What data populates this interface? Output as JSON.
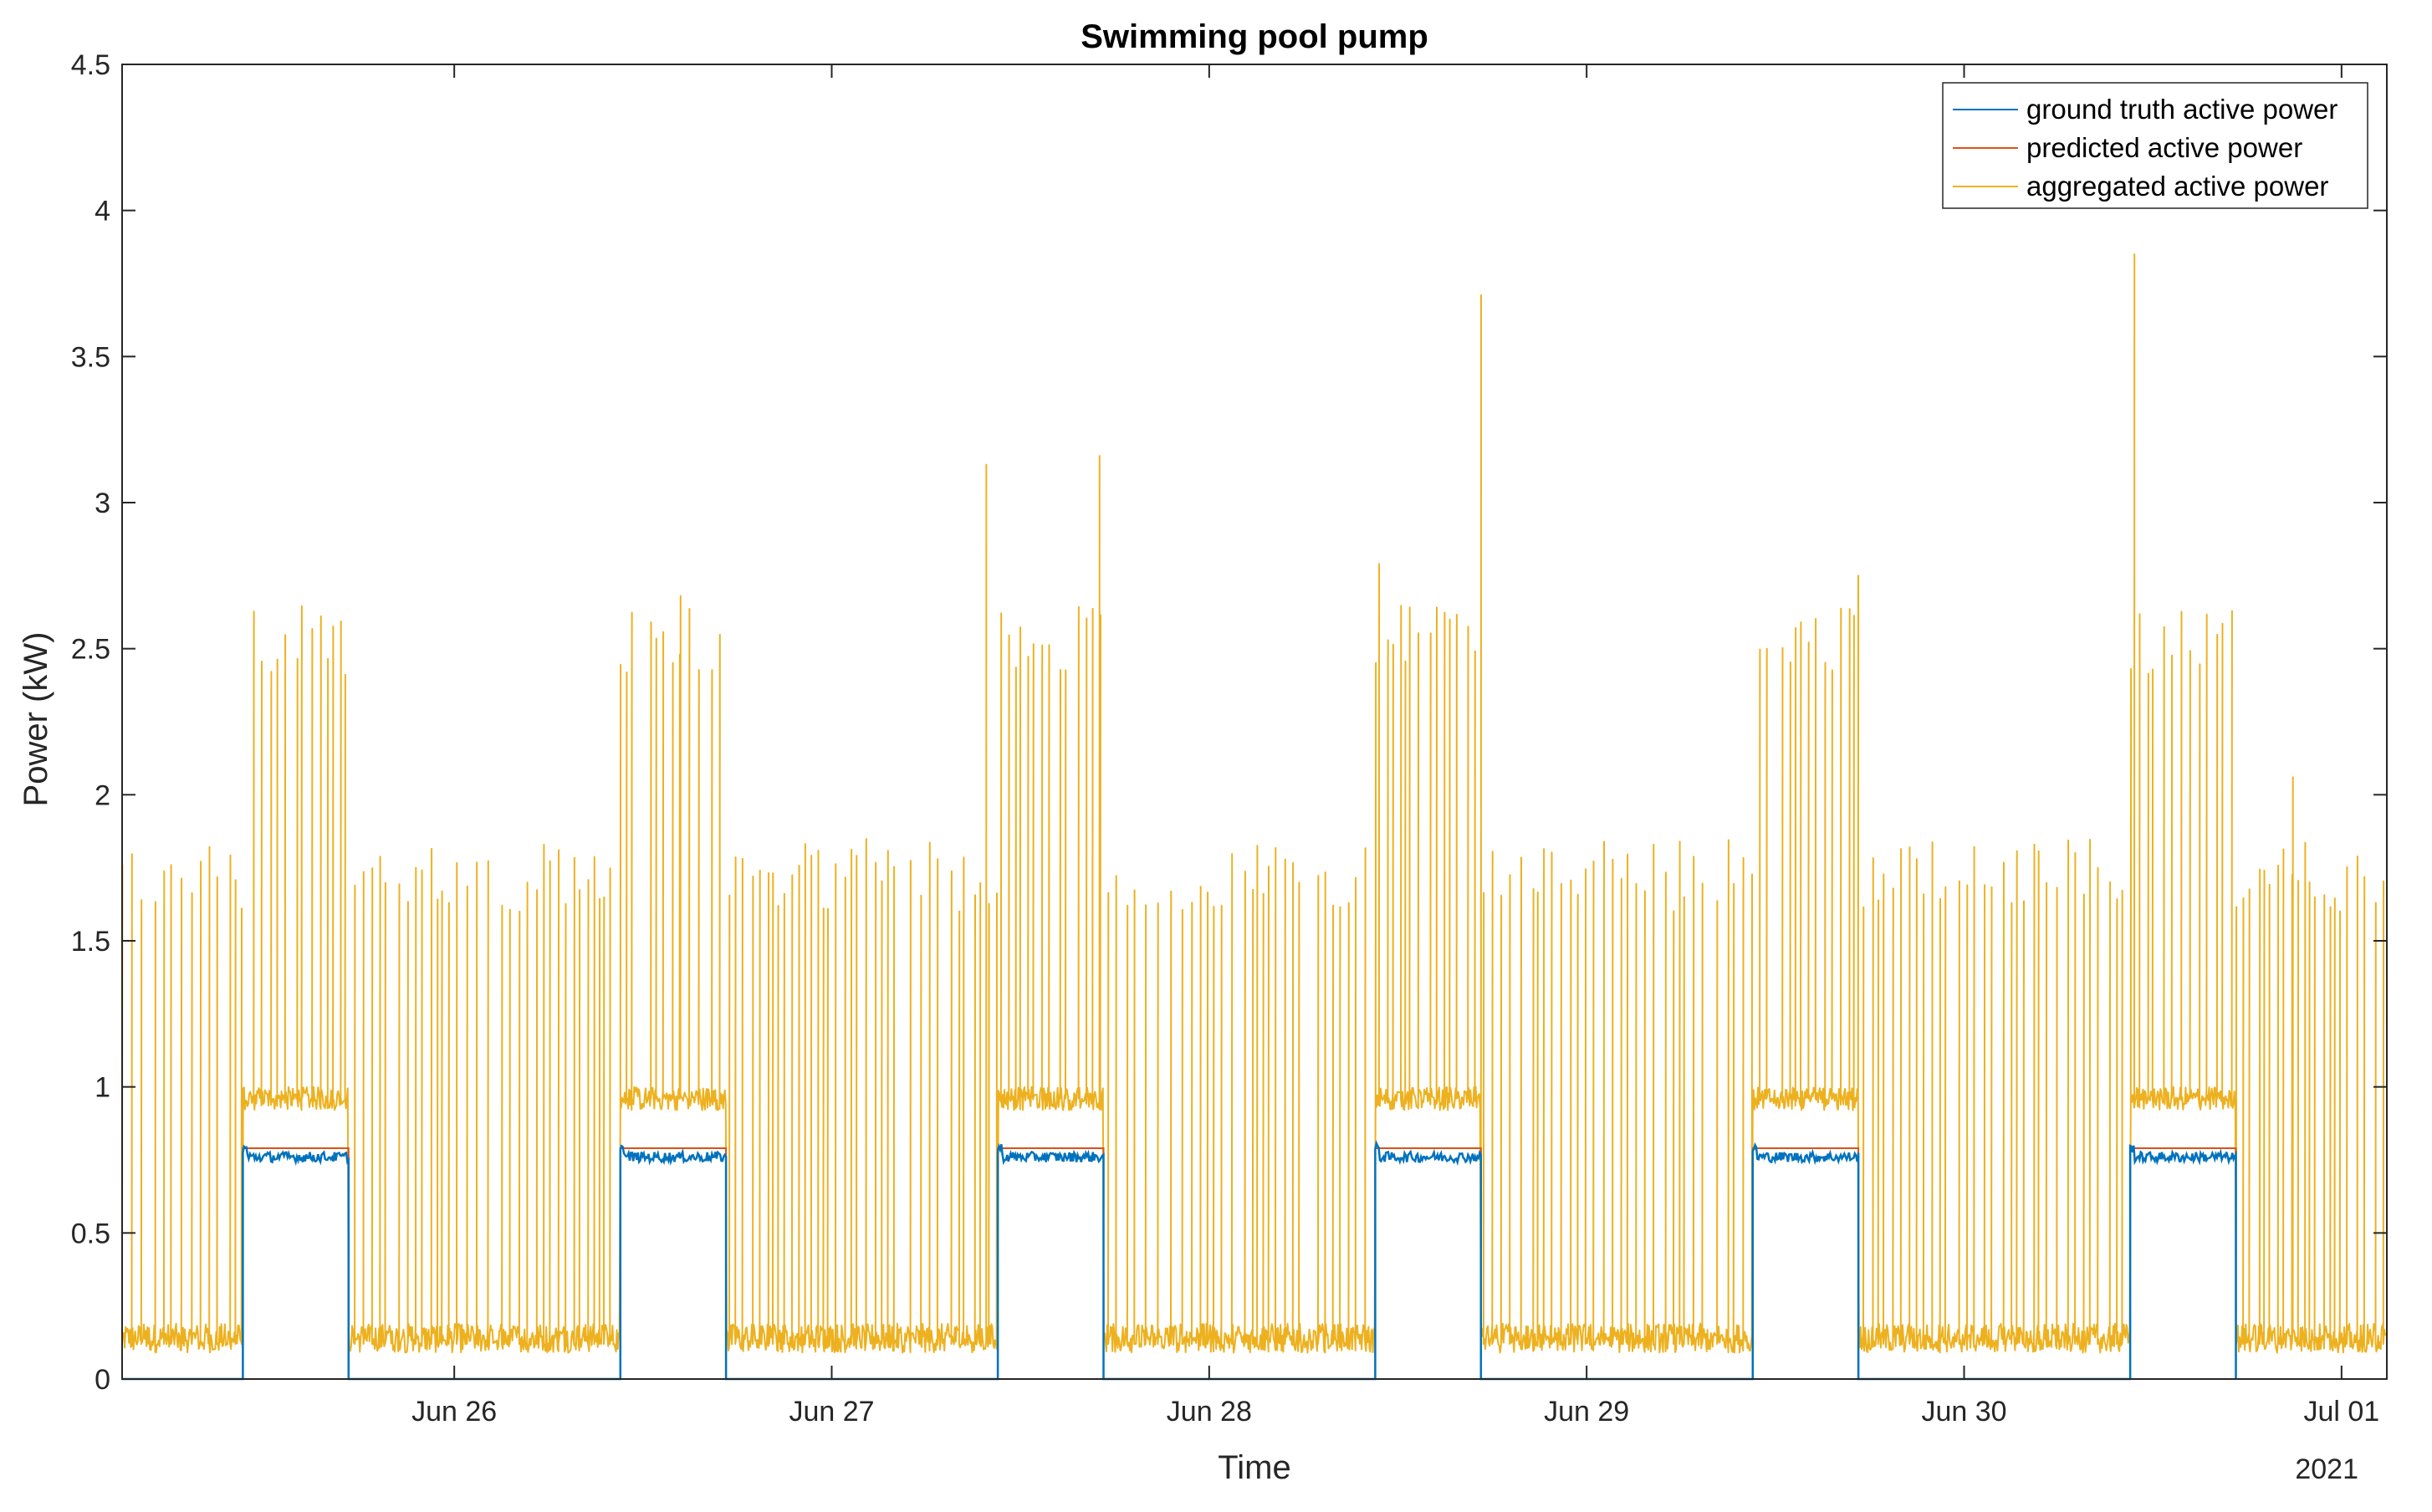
{
  "chart_data": {
    "type": "line",
    "title": "Swimming pool pump",
    "xlabel": "Time",
    "ylabel": "Power (kW)",
    "year_label": "2021",
    "xlim_days": [
      0,
      6.0
    ],
    "ylim": [
      0,
      4.5
    ],
    "yticks": [
      0,
      0.5,
      1,
      1.5,
      2,
      2.5,
      3,
      3.5,
      4,
      4.5
    ],
    "ytick_labels": [
      "0",
      "0.5",
      "1",
      "1.5",
      "2",
      "2.5",
      "3",
      "3.5",
      "4",
      "4.5"
    ],
    "xticks_days": [
      0.88,
      1.88,
      2.88,
      3.88,
      4.88,
      5.88
    ],
    "xtick_labels": [
      "Jun 26",
      "Jun 27",
      "Jun 28",
      "Jun 29",
      "Jun 30",
      "Jul 01"
    ],
    "legend_location": "top-right",
    "series": [
      {
        "name": "ground truth active power",
        "color": "#0072BD",
        "style": "on-off",
        "on_level": 0.76,
        "off_level": 0.0,
        "on_intervals_days": [
          [
            0.32,
            0.6
          ],
          [
            1.32,
            1.6
          ],
          [
            2.32,
            2.6
          ],
          [
            3.32,
            3.6
          ],
          [
            4.32,
            4.6
          ],
          [
            5.32,
            5.6
          ]
        ]
      },
      {
        "name": "predicted active power",
        "color": "#D95319",
        "style": "on-off",
        "on_level": 0.79,
        "off_level": 0.0,
        "on_intervals_days": [
          [
            0.32,
            0.6
          ],
          [
            1.32,
            1.6
          ],
          [
            2.32,
            2.6
          ],
          [
            3.32,
            3.6
          ],
          [
            4.32,
            4.6
          ],
          [
            5.32,
            5.6
          ]
        ]
      },
      {
        "name": "aggregated active power",
        "color": "#EDB120",
        "style": "spiky",
        "base_off": 0.12,
        "base_on": 0.96,
        "spike_off_min": 1.6,
        "spike_off_max": 1.85,
        "spike_on_min": 2.4,
        "spike_on_max": 2.65,
        "peaks": [
          {
            "day": 2.29,
            "value": 3.13
          },
          {
            "day": 2.59,
            "value": 3.16
          },
          {
            "day": 3.6,
            "value": 3.71
          },
          {
            "day": 5.33,
            "value": 3.85
          },
          {
            "day": 4.6,
            "value": 2.75
          },
          {
            "day": 3.33,
            "value": 2.79
          },
          {
            "day": 1.48,
            "value": 2.68
          },
          {
            "day": 5.75,
            "value": 2.06
          }
        ]
      }
    ]
  }
}
